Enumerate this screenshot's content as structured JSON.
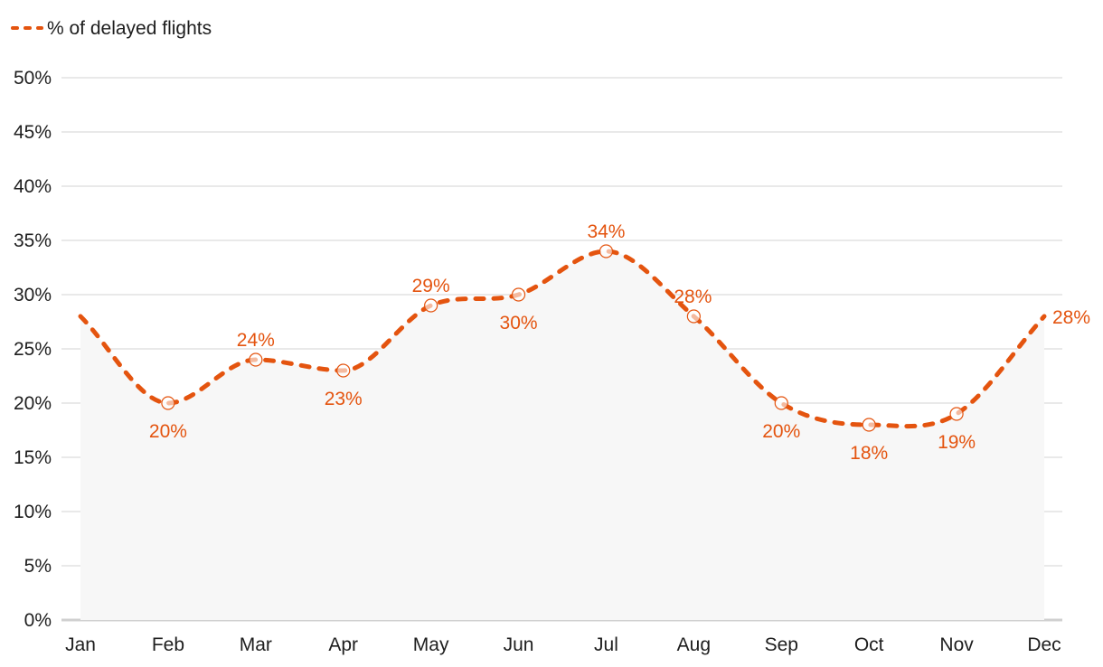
{
  "colors": {
    "accent": "#e4540f",
    "grid": "#dcdcdc",
    "axis": "#d0d0d0",
    "area": "#f7f7f7",
    "text": "#1e1e1e"
  },
  "legend": {
    "label": "% of delayed flights"
  },
  "chart_data": {
    "type": "line",
    "title": "",
    "xlabel": "",
    "ylabel": "",
    "categories": [
      "Jan",
      "Feb",
      "Mar",
      "Apr",
      "May",
      "Jun",
      "Jul",
      "Aug",
      "Sep",
      "Oct",
      "Nov",
      "Dec"
    ],
    "series": [
      {
        "name": "% of delayed flights",
        "values": [
          28,
          20,
          24,
          23,
          29,
          30,
          34,
          28,
          20,
          18,
          19,
          28
        ],
        "labels": [
          "",
          "20%",
          "24%",
          "23%",
          "29%",
          "30%",
          "34%",
          "28%",
          "20%",
          "18%",
          "19%",
          "28%"
        ],
        "style": "dashed",
        "markers": "hollow-circle"
      }
    ],
    "ylim": [
      0,
      50
    ],
    "yticks": [
      "0%",
      "5%",
      "10%",
      "15%",
      "20%",
      "25%",
      "30%",
      "35%",
      "40%",
      "45%",
      "50%"
    ],
    "grid": true,
    "legend_position": "top-left"
  }
}
